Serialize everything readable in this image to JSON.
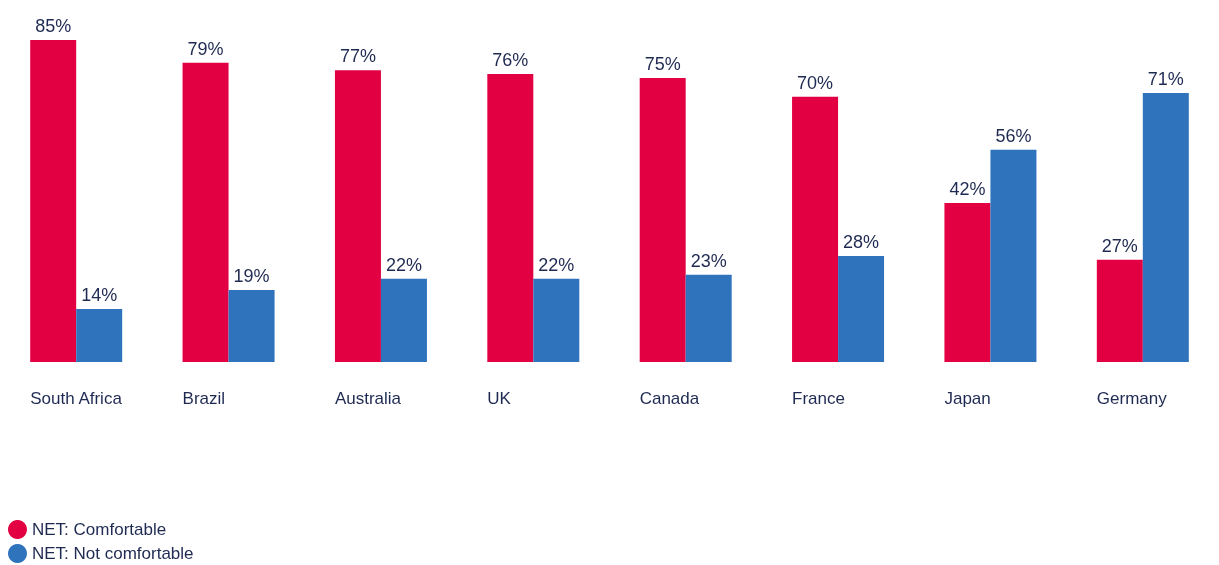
{
  "chart_data": {
    "type": "bar",
    "categories": [
      "South Africa",
      "Brazil",
      "Australia",
      "UK",
      "Canada",
      "France",
      "Japan",
      "Germany"
    ],
    "series": [
      {
        "name": "NET: Comfortable",
        "color": "#e20043",
        "values": [
          85,
          79,
          77,
          76,
          75,
          70,
          42,
          27
        ],
        "value_labels": [
          "85%",
          "79%",
          "77%",
          "76%",
          "75%",
          "70%",
          "42%",
          "27%"
        ]
      },
      {
        "name": "NET: Not comfortable",
        "color": "#2f73bd",
        "values": [
          14,
          19,
          22,
          22,
          23,
          28,
          56,
          71
        ],
        "value_labels": [
          "14%",
          "19%",
          "22%",
          "22%",
          "23%",
          "28%",
          "56%",
          "71%"
        ]
      }
    ],
    "legend": "bottom left"
  }
}
